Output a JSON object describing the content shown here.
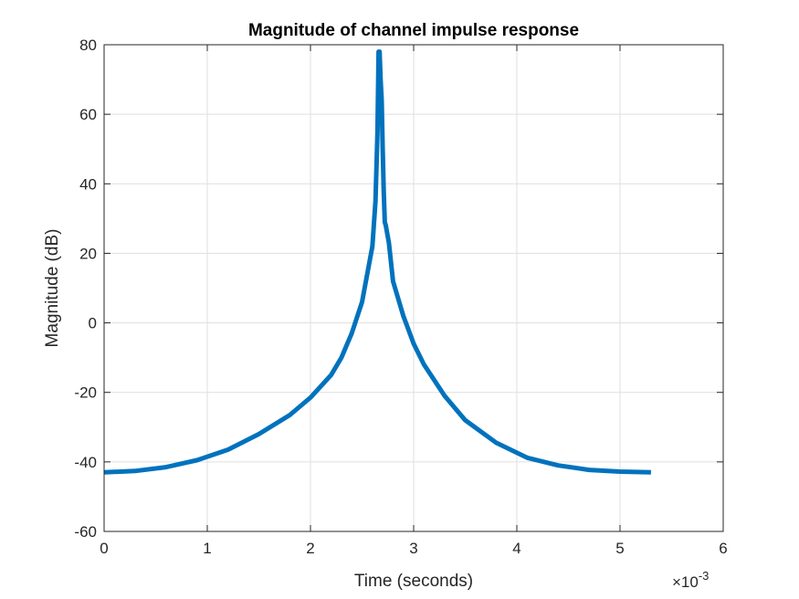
{
  "chart_data": {
    "type": "line",
    "title": "Magnitude of channel impulse response",
    "xlabel": "Time (seconds)",
    "ylabel": "Magnitude (dB)",
    "x_exponent_label": "×10",
    "x_exponent_power": "-3",
    "xlim": [
      0,
      0.006
    ],
    "ylim": [
      -60,
      80
    ],
    "xticks": [
      0,
      0.001,
      0.002,
      0.003,
      0.004,
      0.005,
      0.006
    ],
    "xtick_labels": [
      "0",
      "1",
      "2",
      "3",
      "4",
      "5",
      "6"
    ],
    "yticks": [
      -60,
      -40,
      -20,
      0,
      20,
      40,
      60,
      80
    ],
    "ytick_labels": [
      "-60",
      "-40",
      "-20",
      "0",
      "20",
      "40",
      "60",
      "80"
    ],
    "grid": true,
    "line_color": "#0072BD",
    "series": [
      {
        "x": [
          0,
          0.0003,
          0.0006,
          0.0009,
          0.0012,
          0.0015,
          0.0018,
          0.002,
          0.0022,
          0.0023,
          0.0024,
          0.0025,
          0.0026,
          0.00263,
          0.00265,
          0.00266,
          0.00267,
          0.00268,
          0.00269,
          0.0027,
          0.00271,
          0.00272,
          0.00273,
          0.00276,
          0.0028,
          0.0029,
          0.003,
          0.0031,
          0.0033,
          0.0035,
          0.0038,
          0.0041,
          0.0044,
          0.0047,
          0.005,
          0.0053
        ],
        "y": [
          -43,
          -42.6,
          -41.5,
          -39.5,
          -36.5,
          -32,
          -26.5,
          -21.5,
          -15,
          -10,
          -3,
          6,
          22,
          35,
          55,
          78,
          78,
          70,
          64,
          50,
          38,
          29,
          28,
          23,
          12,
          2,
          -6,
          -12,
          -21,
          -28,
          -34.5,
          -38.8,
          -41,
          -42.3,
          -42.8,
          -43
        ]
      }
    ]
  }
}
